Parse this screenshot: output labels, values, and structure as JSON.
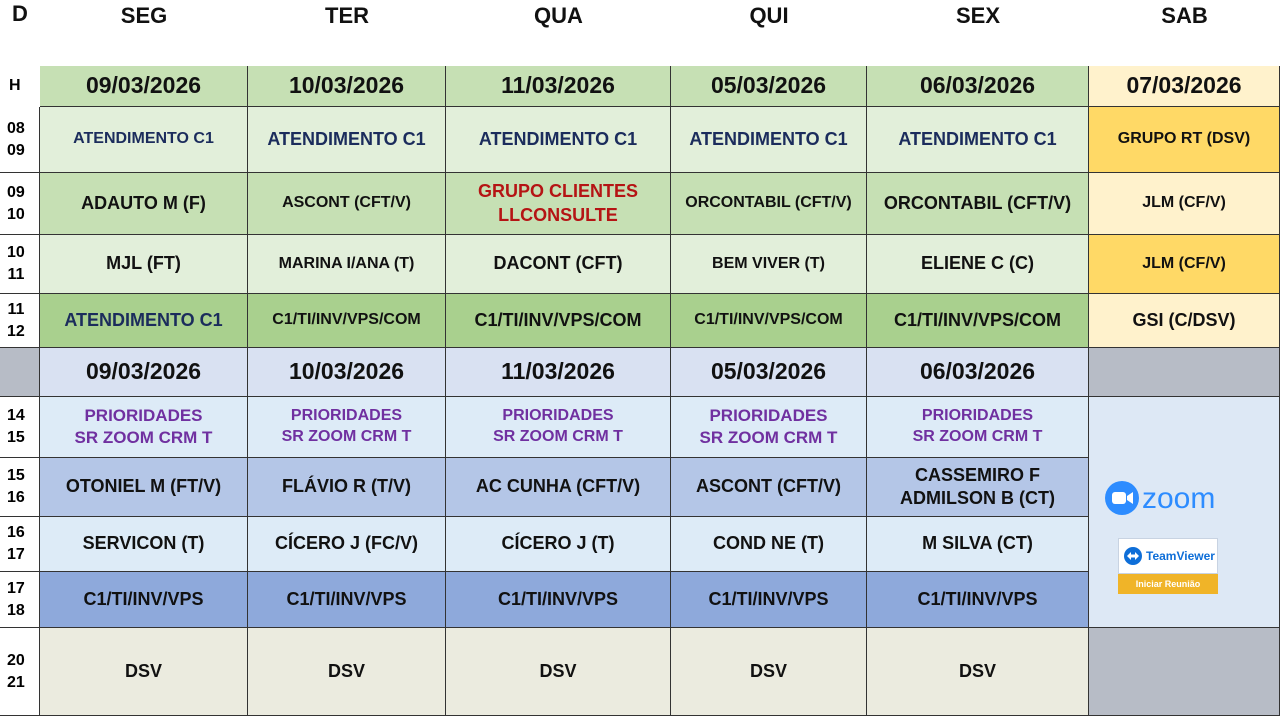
{
  "header": {
    "corner": "D",
    "days": [
      "SEG",
      "TER",
      "QUA",
      "QUI",
      "SEX",
      "SAB"
    ]
  },
  "morning": {
    "hour_label": "H",
    "dates": [
      "09/03/2026",
      "10/03/2026",
      "11/03/2026",
      "05/03/2026",
      "06/03/2026",
      "07/03/2026"
    ],
    "hours": [
      "08\n09",
      "09\n10",
      "10\n11",
      "11\n12"
    ],
    "rows": [
      [
        "ATENDIMENTO C1",
        "ATENDIMENTO C1",
        "ATENDIMENTO C1",
        "ATENDIMENTO C1",
        "ATENDIMENTO C1",
        "GRUPO RT (DSV)"
      ],
      [
        "ADAUTO M (F)",
        "ASCONT (CFT/V)",
        "GRUPO CLIENTES\nLLCONSULTE",
        "ORCONTABIL (CFT/V)",
        "ORCONTABIL (CFT/V)",
        "JLM (CF/V)"
      ],
      [
        "MJL (FT)",
        "MARINA I/ANA (T)",
        "DACONT (CFT)",
        "BEM VIVER (T)",
        "ELIENE C (C)",
        "JLM  (CF/V)"
      ],
      [
        "ATENDIMENTO C1",
        "C1/TI/INV/VPS/COM",
        "C1/TI/INV/VPS/COM",
        "C1/TI/INV/VPS/COM",
        "C1/TI/INV/VPS/COM",
        "GSI (C/DSV)"
      ]
    ]
  },
  "afternoon": {
    "dates": [
      "09/03/2026",
      "10/03/2026",
      "11/03/2026",
      "05/03/2026",
      "06/03/2026"
    ],
    "hours": [
      "14\n15",
      "15\n16",
      "16\n17",
      "17\n18",
      "20\n21"
    ],
    "rows": [
      [
        "PRIORIDADES\nSR ZOOM CRM T",
        "PRIORIDADES\nSR ZOOM CRM T",
        "PRIORIDADES\nSR ZOOM CRM T",
        "PRIORIDADES\nSR ZOOM CRM T",
        "PRIORIDADES\nSR ZOOM CRM T"
      ],
      [
        "OTONIEL M (FT/V)",
        "FLÁVIO R (T/V)",
        "AC CUNHA (CFT/V)",
        "ASCONT (CFT/V)",
        "CASSEMIRO F\nADMILSON B (CT)"
      ],
      [
        "SERVICON (T)",
        "CÍCERO J (FC/V)",
        "CÍCERO J (T)",
        "COND NE (T)",
        "M SILVA (CT)"
      ],
      [
        "C1/TI/INV/VPS",
        "C1/TI/INV/VPS",
        "C1/TI/INV/VPS",
        "C1/TI/INV/VPS",
        "C1/TI/INV/VPS"
      ],
      [
        "DSV",
        "DSV",
        "DSV",
        "DSV",
        "DSV"
      ]
    ]
  },
  "apps": {
    "zoom": {
      "label": "zoom"
    },
    "teamviewer": {
      "name": "TeamViewer",
      "caption": "Iniciar Reunião"
    }
  },
  "colors": {
    "green_dark": "#a9d08e",
    "green_mid": "#c6e0b4",
    "green_light": "#e2efda",
    "gold": "#ffd966",
    "gold_light": "#fff2cc",
    "blue_dark": "#8ea9db",
    "blue_mid": "#b4c6e7",
    "blue_light": "#d9e1f2",
    "blue_pale": "#ddebf7",
    "gray": "#b7bcc6",
    "khaki": "#ebebdf",
    "zoom_blue": "#2d8cff"
  }
}
